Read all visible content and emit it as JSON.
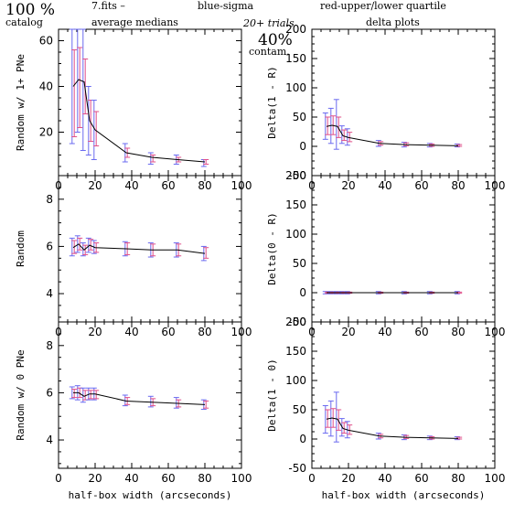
{
  "header": {
    "pct_catalog": "100 %",
    "catalog": "catalog",
    "fits": "7.fits  –",
    "average_medians": "average medians",
    "blue_sigma": "blue-sigma",
    "red_quartile": "red-upper/lower quartile",
    "trials": "20+ trials",
    "pct_contam": "40%",
    "contam": "contam.",
    "delta_plots": "delta plots"
  },
  "colors": {
    "line": "#000000",
    "sigma": "#6a6af0",
    "quartile": "#e0508a",
    "header_blue": "#3a3adc",
    "header_red": "#e03c3c"
  },
  "chart_data": [
    {
      "type": "line",
      "id": "p1",
      "xlabel": "",
      "ylabel": "Random w/ 1+ PNe",
      "xlim": [
        0,
        100
      ],
      "ylim": [
        1,
        65
      ],
      "xticks": [
        "0",
        "20",
        "40",
        "60",
        "80",
        "100"
      ],
      "yticks": [
        20,
        40,
        60
      ],
      "x": [
        8,
        11,
        14,
        17,
        20,
        37,
        51,
        65,
        80
      ],
      "y": [
        40,
        43,
        42,
        25,
        21,
        11,
        9,
        8,
        7
      ],
      "sigma": [
        [
          15,
          65
        ],
        [
          20,
          65
        ],
        [
          12,
          65
        ],
        [
          10,
          40
        ],
        [
          8,
          34
        ],
        [
          7,
          15
        ],
        [
          6,
          11
        ],
        [
          6,
          10
        ],
        [
          5,
          8
        ]
      ],
      "quartile": [
        [
          18,
          56
        ],
        [
          22,
          57
        ],
        [
          28,
          52
        ],
        [
          16,
          34
        ],
        [
          14,
          29
        ],
        [
          9,
          13
        ],
        [
          7,
          10
        ],
        [
          7,
          9
        ],
        [
          6,
          8
        ]
      ]
    },
    {
      "type": "line",
      "id": "p2",
      "xlabel": "",
      "ylabel": "Random",
      "xlim": [
        0,
        100
      ],
      "ylim": [
        2.8,
        9
      ],
      "xticks": [
        "0",
        "20",
        "40",
        "60",
        "80",
        "100"
      ],
      "yticks": [
        4,
        6,
        8
      ],
      "x": [
        8,
        11,
        14,
        17,
        20,
        37,
        51,
        65,
        80
      ],
      "y": [
        5.95,
        6.1,
        5.85,
        6.05,
        5.95,
        5.9,
        5.85,
        5.85,
        5.7
      ],
      "sigma": [
        [
          5.6,
          6.35
        ],
        [
          5.75,
          6.45
        ],
        [
          5.6,
          6.15
        ],
        [
          5.75,
          6.35
        ],
        [
          5.7,
          6.25
        ],
        [
          5.6,
          6.2
        ],
        [
          5.55,
          6.15
        ],
        [
          5.55,
          6.15
        ],
        [
          5.4,
          6.0
        ]
      ],
      "quartile": [
        [
          5.7,
          6.25
        ],
        [
          5.85,
          6.35
        ],
        [
          5.65,
          6.05
        ],
        [
          5.85,
          6.3
        ],
        [
          5.75,
          6.15
        ],
        [
          5.65,
          6.15
        ],
        [
          5.6,
          6.1
        ],
        [
          5.6,
          6.1
        ],
        [
          5.5,
          5.95
        ]
      ]
    },
    {
      "type": "line",
      "id": "p3",
      "xlabel": "half-box width (arcseconds)",
      "ylabel": "Random w/ 0 PNe",
      "xlim": [
        0,
        100
      ],
      "ylim": [
        2.8,
        9
      ],
      "xticks": [
        "0",
        "20",
        "40",
        "60",
        "80",
        "100"
      ],
      "yticks": [
        4,
        6,
        8
      ],
      "x": [
        8,
        11,
        14,
        17,
        20,
        37,
        51,
        65,
        80
      ],
      "y": [
        6.0,
        6.0,
        5.85,
        5.95,
        5.95,
        5.65,
        5.6,
        5.55,
        5.5
      ],
      "sigma": [
        [
          5.75,
          6.25
        ],
        [
          5.7,
          6.3
        ],
        [
          5.6,
          6.2
        ],
        [
          5.7,
          6.2
        ],
        [
          5.7,
          6.2
        ],
        [
          5.45,
          5.9
        ],
        [
          5.4,
          5.85
        ],
        [
          5.35,
          5.8
        ],
        [
          5.3,
          5.7
        ]
      ],
      "quartile": [
        [
          5.8,
          6.15
        ],
        [
          5.8,
          6.2
        ],
        [
          5.7,
          6.1
        ],
        [
          5.75,
          6.1
        ],
        [
          5.75,
          6.1
        ],
        [
          5.5,
          5.8
        ],
        [
          5.45,
          5.75
        ],
        [
          5.4,
          5.7
        ],
        [
          5.35,
          5.65
        ]
      ]
    },
    {
      "type": "line",
      "id": "p4",
      "xlabel": "",
      "ylabel": "Delta(1 - R)",
      "xlim": [
        0,
        100
      ],
      "ylim": [
        -50,
        200
      ],
      "xticks": [
        "0",
        "20",
        "40",
        "60",
        "80",
        "100"
      ],
      "yticks": [
        -50,
        0,
        50,
        100,
        150,
        200
      ],
      "x": [
        8,
        11,
        14,
        17,
        20,
        37,
        51,
        65,
        80
      ],
      "y": [
        34,
        36,
        34,
        18,
        15,
        5,
        3,
        2,
        1
      ],
      "sigma": [
        [
          12,
          57
        ],
        [
          5,
          65
        ],
        [
          -5,
          80
        ],
        [
          5,
          35
        ],
        [
          2,
          30
        ],
        [
          0,
          10
        ],
        [
          -1,
          7
        ],
        [
          -1,
          5
        ],
        [
          -1,
          4
        ]
      ],
      "quartile": [
        [
          20,
          50
        ],
        [
          20,
          52
        ],
        [
          15,
          50
        ],
        [
          10,
          28
        ],
        [
          8,
          24
        ],
        [
          2,
          8
        ],
        [
          1,
          6
        ],
        [
          0,
          4
        ],
        [
          0,
          3
        ]
      ]
    },
    {
      "type": "line",
      "id": "p5",
      "xlabel": "",
      "ylabel": "Delta(0 - R)",
      "xlim": [
        0,
        100
      ],
      "ylim": [
        -50,
        200
      ],
      "xticks": [
        "0",
        "20",
        "40",
        "60",
        "80",
        "100"
      ],
      "yticks": [
        -50,
        0,
        50,
        100,
        150,
        200
      ],
      "x": [
        8,
        11,
        14,
        17,
        20,
        37,
        51,
        65,
        80
      ],
      "y": [
        0,
        0,
        0,
        0,
        0,
        0,
        0,
        0,
        0
      ],
      "sigma": [
        [
          -2,
          2
        ],
        [
          -2,
          2
        ],
        [
          -2,
          2
        ],
        [
          -2,
          2
        ],
        [
          -2,
          2
        ],
        [
          -2,
          2
        ],
        [
          -2,
          2
        ],
        [
          -2,
          2
        ],
        [
          -2,
          2
        ]
      ],
      "quartile": [
        [
          -1,
          1
        ],
        [
          -1,
          1
        ],
        [
          -1,
          1
        ],
        [
          -1,
          1
        ],
        [
          -1,
          1
        ],
        [
          -1,
          1
        ],
        [
          -1,
          1
        ],
        [
          -1,
          1
        ],
        [
          -1,
          1
        ]
      ]
    },
    {
      "type": "line",
      "id": "p6",
      "xlabel": "half-box width (arcseconds)",
      "ylabel": "Delta(1 - 0)",
      "xlim": [
        0,
        100
      ],
      "ylim": [
        -50,
        200
      ],
      "xticks": [
        "0",
        "20",
        "40",
        "60",
        "80",
        "100"
      ],
      "yticks": [
        -50,
        0,
        50,
        100,
        150,
        200
      ],
      "x": [
        8,
        11,
        14,
        17,
        20,
        37,
        51,
        65,
        80
      ],
      "y": [
        34,
        36,
        34,
        18,
        15,
        5,
        3,
        2,
        1
      ],
      "sigma": [
        [
          10,
          57
        ],
        [
          5,
          65
        ],
        [
          -5,
          80
        ],
        [
          5,
          35
        ],
        [
          2,
          30
        ],
        [
          0,
          10
        ],
        [
          -1,
          7
        ],
        [
          -1,
          5
        ],
        [
          -1,
          4
        ]
      ],
      "quartile": [
        [
          20,
          50
        ],
        [
          20,
          52
        ],
        [
          15,
          50
        ],
        [
          10,
          28
        ],
        [
          8,
          24
        ],
        [
          2,
          8
        ],
        [
          1,
          6
        ],
        [
          0,
          4
        ],
        [
          0,
          3
        ]
      ]
    }
  ]
}
